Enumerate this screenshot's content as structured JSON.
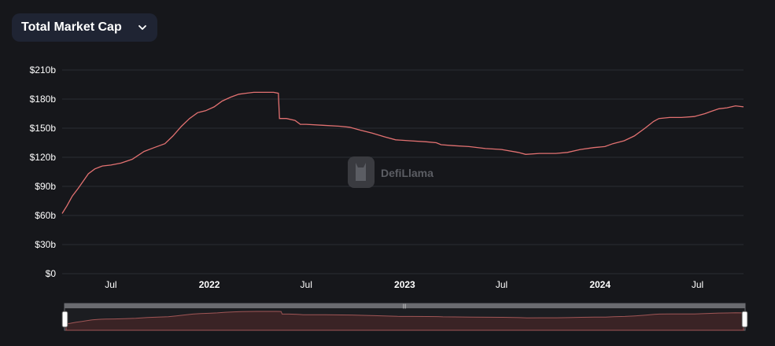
{
  "selector": {
    "label": "Total Market Cap",
    "icon": "chevron-down-icon"
  },
  "watermark": {
    "text": "DefiLlama"
  },
  "colors": {
    "line": "#e27171",
    "background": "#16171b",
    "grid": "#2a2c33",
    "brush_fill": "#3a2325"
  },
  "chart_data": {
    "type": "line",
    "title": "",
    "xlabel": "",
    "ylabel": "",
    "ylim": [
      0,
      210
    ],
    "y_unit": "b",
    "y_ticks": [
      0,
      30,
      60,
      90,
      120,
      150,
      180,
      210
    ],
    "y_tick_labels": [
      "$0",
      "$30b",
      "$60b",
      "$90b",
      "$120b",
      "$150b",
      "$180b",
      "$210b"
    ],
    "xlim": [
      "2021-04-01",
      "2024-09-25"
    ],
    "x_ticks": [
      {
        "date": "2021-07-01",
        "label": "Jul",
        "year": false
      },
      {
        "date": "2022-01-01",
        "label": "2022",
        "year": true
      },
      {
        "date": "2022-07-01",
        "label": "Jul",
        "year": false
      },
      {
        "date": "2023-01-01",
        "label": "2023",
        "year": true
      },
      {
        "date": "2023-07-01",
        "label": "Jul",
        "year": false
      },
      {
        "date": "2024-01-01",
        "label": "2024",
        "year": true
      },
      {
        "date": "2024-07-01",
        "label": "Jul",
        "year": false
      }
    ],
    "grid": true,
    "legend": "none",
    "series": [
      {
        "points": [
          [
            "2021-04-01",
            62
          ],
          [
            "2021-04-10",
            70
          ],
          [
            "2021-04-20",
            80
          ],
          [
            "2021-05-01",
            88
          ],
          [
            "2021-05-10",
            95
          ],
          [
            "2021-05-20",
            103
          ],
          [
            "2021-06-01",
            108
          ],
          [
            "2021-06-15",
            111
          ],
          [
            "2021-07-01",
            112
          ],
          [
            "2021-07-20",
            114
          ],
          [
            "2021-08-10",
            118
          ],
          [
            "2021-09-01",
            126
          ],
          [
            "2021-09-20",
            130
          ],
          [
            "2021-10-10",
            134
          ],
          [
            "2021-10-25",
            142
          ],
          [
            "2021-11-10",
            152
          ],
          [
            "2021-11-25",
            160
          ],
          [
            "2021-12-10",
            166
          ],
          [
            "2021-12-25",
            168
          ],
          [
            "2022-01-10",
            172
          ],
          [
            "2022-01-25",
            178
          ],
          [
            "2022-02-10",
            182
          ],
          [
            "2022-02-25",
            185
          ],
          [
            "2022-03-10",
            186
          ],
          [
            "2022-03-25",
            187
          ],
          [
            "2022-04-10",
            187
          ],
          [
            "2022-05-01",
            187
          ],
          [
            "2022-05-10",
            186
          ],
          [
            "2022-05-12",
            160
          ],
          [
            "2022-05-25",
            160
          ],
          [
            "2022-06-10",
            158
          ],
          [
            "2022-06-20",
            154
          ],
          [
            "2022-07-01",
            154
          ],
          [
            "2022-08-01",
            153
          ],
          [
            "2022-09-01",
            152
          ],
          [
            "2022-09-20",
            151
          ],
          [
            "2022-10-10",
            148
          ],
          [
            "2022-11-01",
            145
          ],
          [
            "2022-11-25",
            141
          ],
          [
            "2022-12-15",
            138
          ],
          [
            "2023-01-10",
            137
          ],
          [
            "2023-02-10",
            136
          ],
          [
            "2023-03-01",
            135
          ],
          [
            "2023-03-10",
            133
          ],
          [
            "2023-04-01",
            132
          ],
          [
            "2023-05-01",
            131
          ],
          [
            "2023-06-01",
            129
          ],
          [
            "2023-07-01",
            128
          ],
          [
            "2023-08-01",
            125
          ],
          [
            "2023-08-15",
            123
          ],
          [
            "2023-09-10",
            124
          ],
          [
            "2023-10-10",
            124
          ],
          [
            "2023-11-01",
            125
          ],
          [
            "2023-11-25",
            128
          ],
          [
            "2023-12-20",
            130
          ],
          [
            "2024-01-10",
            131
          ],
          [
            "2024-01-25",
            134
          ],
          [
            "2024-02-15",
            137
          ],
          [
            "2024-03-05",
            142
          ],
          [
            "2024-03-25",
            150
          ],
          [
            "2024-04-10",
            157
          ],
          [
            "2024-04-20",
            160
          ],
          [
            "2024-05-10",
            161
          ],
          [
            "2024-06-01",
            161
          ],
          [
            "2024-06-25",
            162
          ],
          [
            "2024-07-15",
            165
          ],
          [
            "2024-07-25",
            167
          ],
          [
            "2024-08-10",
            170
          ],
          [
            "2024-08-25",
            171
          ],
          [
            "2024-09-10",
            173
          ],
          [
            "2024-09-25",
            172
          ]
        ]
      }
    ]
  }
}
